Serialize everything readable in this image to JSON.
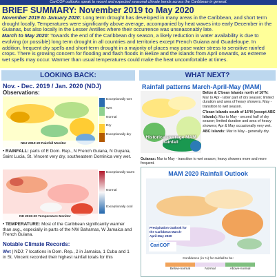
{
  "banner": "CariCOF outlooks speak to recent and expected seasonal climate trends across the Caribbean in general.",
  "summary": {
    "title": "BRIEF SUMMARY: November 2019 to May 2020",
    "paragraphs": [
      {
        "lead": "November 2019 to January 2020:",
        "text": " Long term drought has developed in many areas in the Caribbean, and short term drought locally. Temperatures were significantly above average, accompanied by heat waves into early December in the Guianas, but also locally in the Lesser Antilles where their occurrence was unseasonably late."
      },
      {
        "lead": "March to May 2020:",
        "text": " Towards the end of the Caribbean dry season, a likely reduction in water availability is due to evolving (or possible) long term drought in all countries and territories except French Guiana and Guadeloupe. In addition, frequent dry spells and short-term drought in a majority of places may pose water stress to sensitive rainfed crops. There is growing concern for flooding and flash floods in Belize and the islands from April onwards, as extreme wet spells may occur. Warmer than usual temperatures could make the heat uncomfortable at times."
      }
    ]
  },
  "left": {
    "header": "LOOKING BACK:",
    "title": "Nov. - Dec. 2019 / Jan. 2020 (NDJ)",
    "subtitle": "Observations:",
    "rain_map": {
      "caption": "NDJ 2019-20 Rainfall Monitor",
      "legend": [
        "Exceptionally wet",
        "Wet",
        "Normal",
        "Dry",
        "Exceptionally dry"
      ]
    },
    "rainfall": {
      "lead": "RAINFALL:",
      "text": " parts of E Dom. Rep., N French Guiana, N Guyana, Saint Lucia, St. Vincent very dry, southeastern Dominica very wet."
    },
    "temp_map": {
      "caption": "ND 2019-20 Temperature Monitor",
      "legend": [
        "Exceptionally warm",
        "Normal",
        "Exceptionally cool"
      ]
    },
    "temperature": {
      "lead": "TEMPERATURE:",
      "text": " Most of the Caribbean significantly warmer than avg., especially in parts of the NW Bahamas, W Jamaica and French Guiana."
    },
    "records_title": "Notable Climate Records:",
    "records": {
      "lead": "Wet",
      "text": " | NDJ: 7 locations in Dom. Rep., 2 in Jamaica, 1 Cuba and 1 in St. Vincent recorded their highest rainfall totals for this"
    }
  },
  "right": {
    "header": "WHAT NEXT?",
    "title": "Rainfall patterns March-April-May (MAM)",
    "map_label": "Historical average MAM rainfall",
    "notes": [
      {
        "lead": "Belize & C'bean Islands north of 16°N:",
        "text": " Mar to Apr - latter part of dry season; limited duration and area of heavy showers. May - transition to wet season."
      },
      {
        "lead": "C'bean Islands south of 16°N (except ABC Islands):",
        "text": " Mar to May - second half of dry season; limited duration and area of heavy showers; Apr & May occasionally very wet."
      },
      {
        "lead": "ABC Islands:",
        "text": " Mar to May - generally dry."
      }
    ],
    "guianas": {
      "lead": "Guianas:",
      "text": " Mar to May - transition to wet season; heavy showers more and more frequent."
    },
    "outlook": {
      "title": "MAM 2020 Rainfall Outlook",
      "map_title": "Precipitation Outlook for the Caribbean March-April-May 2020",
      "logo": "CariCOF",
      "legend_title": "Confidence (in %) for rainfall to be:",
      "legend": [
        "Below-normal",
        "Normal",
        "Above-normal"
      ]
    }
  }
}
